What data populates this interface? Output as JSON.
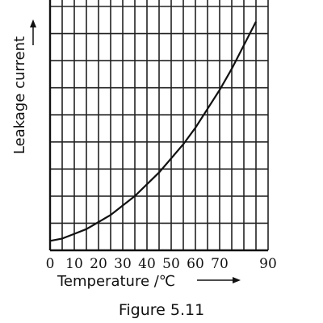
{
  "chart_data": {
    "type": "line",
    "xlabel": "Temperature /℃",
    "ylabel": "Leakage current",
    "caption": "Figure 5.11",
    "xlim": [
      0,
      90
    ],
    "grid": true,
    "x_tick_labels": [
      {
        "value": 0,
        "label": "0"
      },
      {
        "value": 10,
        "label": "10"
      },
      {
        "value": 20,
        "label": "20"
      },
      {
        "value": 30,
        "label": "30"
      },
      {
        "value": 40,
        "label": "40"
      },
      {
        "value": 50,
        "label": "50"
      },
      {
        "value": 60,
        "label": "60"
      },
      {
        "value": 70,
        "label": "70"
      },
      {
        "value": 90,
        "label": "90"
      }
    ],
    "series": [
      {
        "x": [
          0,
          5,
          10,
          15,
          20,
          25,
          30,
          35,
          40,
          45,
          50,
          55,
          60,
          65,
          70,
          75,
          80,
          85
        ],
        "y": [
          0.04,
          0.05,
          0.07,
          0.09,
          0.12,
          0.15,
          0.19,
          0.23,
          0.28,
          0.33,
          0.39,
          0.45,
          0.52,
          0.6,
          0.68,
          0.77,
          0.87,
          0.97
        ]
      }
    ]
  }
}
